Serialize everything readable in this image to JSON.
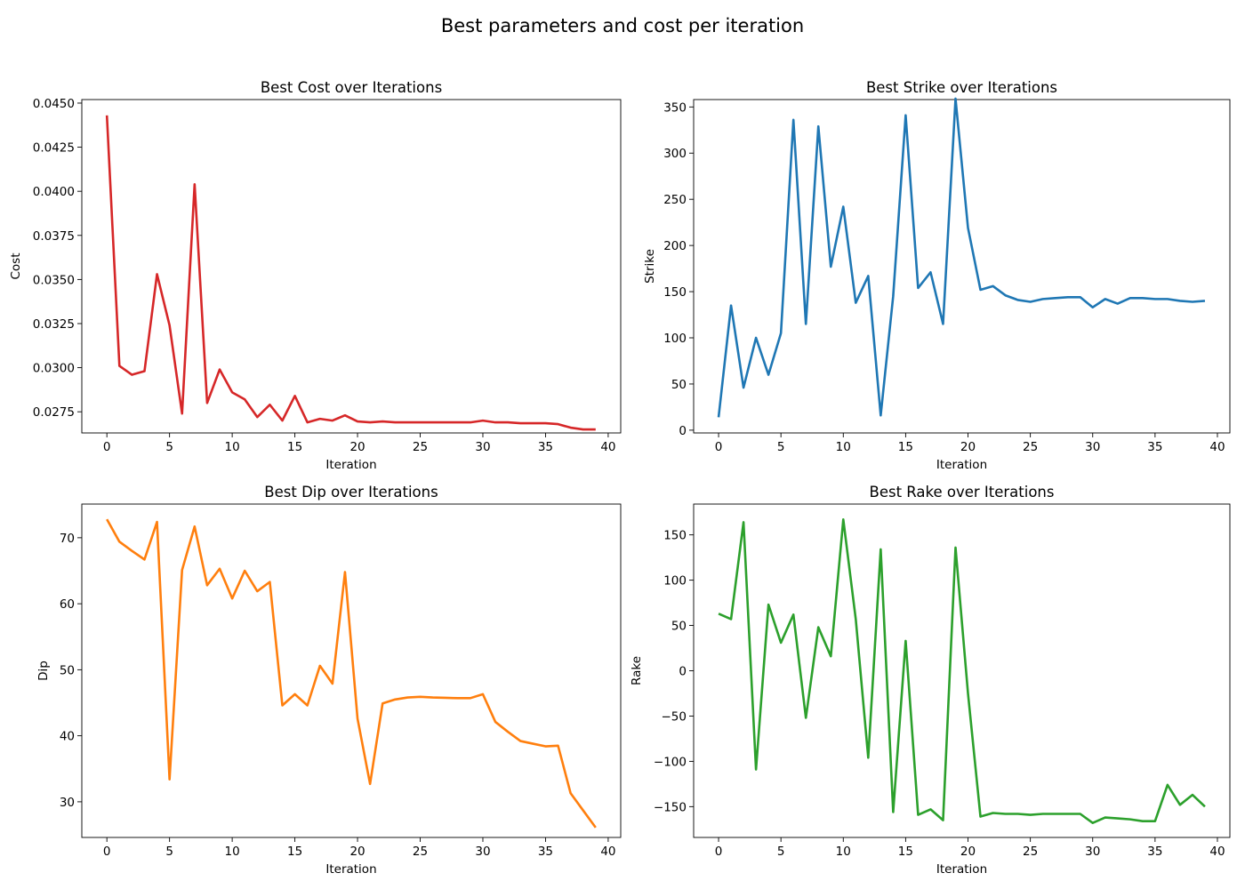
{
  "figure": {
    "title": "Best parameters and cost per iteration"
  },
  "chart_data": [
    {
      "type": "line",
      "title": "Best Cost over Iterations",
      "xlabel": "Iteration",
      "ylabel": "Cost",
      "color": "#d62728",
      "xlim": [
        -2,
        41
      ],
      "ylim": [
        0.0263,
        0.0452
      ],
      "xticks": [
        0,
        5,
        10,
        15,
        20,
        25,
        30,
        35,
        40
      ],
      "xtick_labels": [
        "0",
        "5",
        "10",
        "15",
        "20",
        "25",
        "30",
        "35",
        "40"
      ],
      "yticks": [
        0.0275,
        0.03,
        0.0325,
        0.035,
        0.0375,
        0.04,
        0.0425,
        0.045
      ],
      "ytick_labels": [
        "0.0275",
        "0.0300",
        "0.0325",
        "0.0350",
        "0.0375",
        "0.0400",
        "0.0425",
        "0.0450"
      ],
      "series": [
        {
          "x": [
            0,
            1,
            2,
            3,
            4,
            5,
            6,
            7,
            8,
            9,
            10,
            11,
            12,
            13,
            14,
            15,
            16,
            17,
            18,
            19,
            20,
            21,
            22,
            23,
            24,
            25,
            26,
            27,
            28,
            29,
            30,
            31,
            32,
            33,
            34,
            35,
            36,
            37,
            38,
            39
          ],
          "values": [
            0.0443,
            0.0301,
            0.0296,
            0.0298,
            0.0353,
            0.0324,
            0.0274,
            0.0404,
            0.028,
            0.0299,
            0.0286,
            0.0282,
            0.0272,
            0.0279,
            0.027,
            0.0284,
            0.0269,
            0.0271,
            0.027,
            0.0273,
            0.02695,
            0.0269,
            0.02695,
            0.0269,
            0.0269,
            0.0269,
            0.0269,
            0.0269,
            0.0269,
            0.0269,
            0.027,
            0.0269,
            0.0269,
            0.02685,
            0.02685,
            0.02685,
            0.0268,
            0.0266,
            0.0265,
            0.0265
          ]
        }
      ]
    },
    {
      "type": "line",
      "title": "Best Strike over Iterations",
      "xlabel": "Iteration",
      "ylabel": "Strike",
      "color": "#1f77b4",
      "xlim": [
        -2,
        41
      ],
      "ylim": [
        -3,
        358
      ],
      "xticks": [
        0,
        5,
        10,
        15,
        20,
        25,
        30,
        35,
        40
      ],
      "xtick_labels": [
        "0",
        "5",
        "10",
        "15",
        "20",
        "25",
        "30",
        "35",
        "40"
      ],
      "yticks": [
        0,
        50,
        100,
        150,
        200,
        250,
        300,
        350
      ],
      "ytick_labels": [
        "0",
        "50",
        "100",
        "150",
        "200",
        "250",
        "300",
        "350"
      ],
      "series": [
        {
          "x": [
            0,
            1,
            2,
            3,
            4,
            5,
            6,
            7,
            8,
            9,
            10,
            11,
            12,
            13,
            14,
            15,
            16,
            17,
            18,
            19,
            20,
            21,
            22,
            23,
            24,
            25,
            26,
            27,
            28,
            29,
            30,
            31,
            32,
            33,
            34,
            35,
            36,
            37,
            38,
            39
          ],
          "values": [
            14,
            135,
            46,
            100,
            60,
            105,
            336,
            115,
            329,
            177,
            242,
            138,
            167,
            16,
            145,
            341,
            154,
            171,
            115,
            359,
            219,
            152,
            156,
            146,
            141,
            139,
            142,
            143,
            144,
            144,
            133,
            142,
            137,
            143,
            143,
            142,
            142,
            140,
            139,
            140
          ]
        }
      ]
    },
    {
      "type": "line",
      "title": "Best Dip over Iterations",
      "xlabel": "Iteration",
      "ylabel": "Dip",
      "color": "#ff7f0e",
      "xlim": [
        -2,
        41
      ],
      "ylim": [
        24.6,
        75.1
      ],
      "xticks": [
        0,
        5,
        10,
        15,
        20,
        25,
        30,
        35,
        40
      ],
      "xtick_labels": [
        "0",
        "5",
        "10",
        "15",
        "20",
        "25",
        "30",
        "35",
        "40"
      ],
      "yticks": [
        30,
        40,
        50,
        60,
        70
      ],
      "ytick_labels": [
        "30",
        "40",
        "50",
        "60",
        "70"
      ],
      "series": [
        {
          "x": [
            0,
            1,
            2,
            3,
            4,
            5,
            6,
            7,
            8,
            9,
            10,
            11,
            12,
            13,
            14,
            15,
            16,
            17,
            18,
            19,
            20,
            21,
            22,
            23,
            24,
            25,
            26,
            27,
            28,
            29,
            30,
            31,
            32,
            33,
            34,
            35,
            36,
            37,
            38,
            39
          ],
          "values": [
            72.8,
            69.4,
            68.0,
            66.7,
            72.4,
            33.4,
            65.1,
            71.7,
            62.8,
            65.3,
            60.8,
            65.0,
            61.9,
            63.3,
            44.6,
            46.3,
            44.6,
            50.6,
            47.9,
            64.8,
            42.6,
            32.7,
            44.9,
            45.5,
            45.8,
            45.9,
            45.8,
            45.75,
            45.7,
            45.7,
            46.3,
            42.1,
            40.6,
            39.2,
            38.8,
            38.4,
            38.5,
            31.3,
            28.7,
            26.1
          ]
        }
      ]
    },
    {
      "type": "line",
      "title": "Best Rake over Iterations",
      "xlabel": "Iteration",
      "ylabel": "Rake",
      "color": "#2ca02c",
      "xlim": [
        -2,
        41
      ],
      "ylim": [
        -184,
        184
      ],
      "xticks": [
        0,
        5,
        10,
        15,
        20,
        25,
        30,
        35,
        40
      ],
      "xtick_labels": [
        "0",
        "5",
        "10",
        "15",
        "20",
        "25",
        "30",
        "35",
        "40"
      ],
      "yticks": [
        -150,
        -100,
        -50,
        0,
        50,
        100,
        150
      ],
      "ytick_labels": [
        "−150",
        "−100",
        "−50",
        "0",
        "50",
        "100",
        "150"
      ],
      "series": [
        {
          "x": [
            0,
            1,
            2,
            3,
            4,
            5,
            6,
            7,
            8,
            9,
            10,
            11,
            12,
            13,
            14,
            15,
            16,
            17,
            18,
            19,
            20,
            21,
            22,
            23,
            24,
            25,
            26,
            27,
            28,
            29,
            30,
            31,
            32,
            33,
            34,
            35,
            36,
            37,
            38,
            39
          ],
          "values": [
            63,
            57,
            164,
            -109,
            73,
            31,
            62,
            -52,
            48,
            16,
            167,
            57,
            -96,
            134,
            -156,
            33,
            -159,
            -153,
            -165,
            136,
            -25,
            -161,
            -157,
            -158,
            -158,
            -159,
            -158,
            -158,
            -158,
            -158,
            -168,
            -162,
            -163,
            -164,
            -166,
            -166,
            -126,
            -148,
            -137,
            -150
          ]
        }
      ]
    }
  ]
}
